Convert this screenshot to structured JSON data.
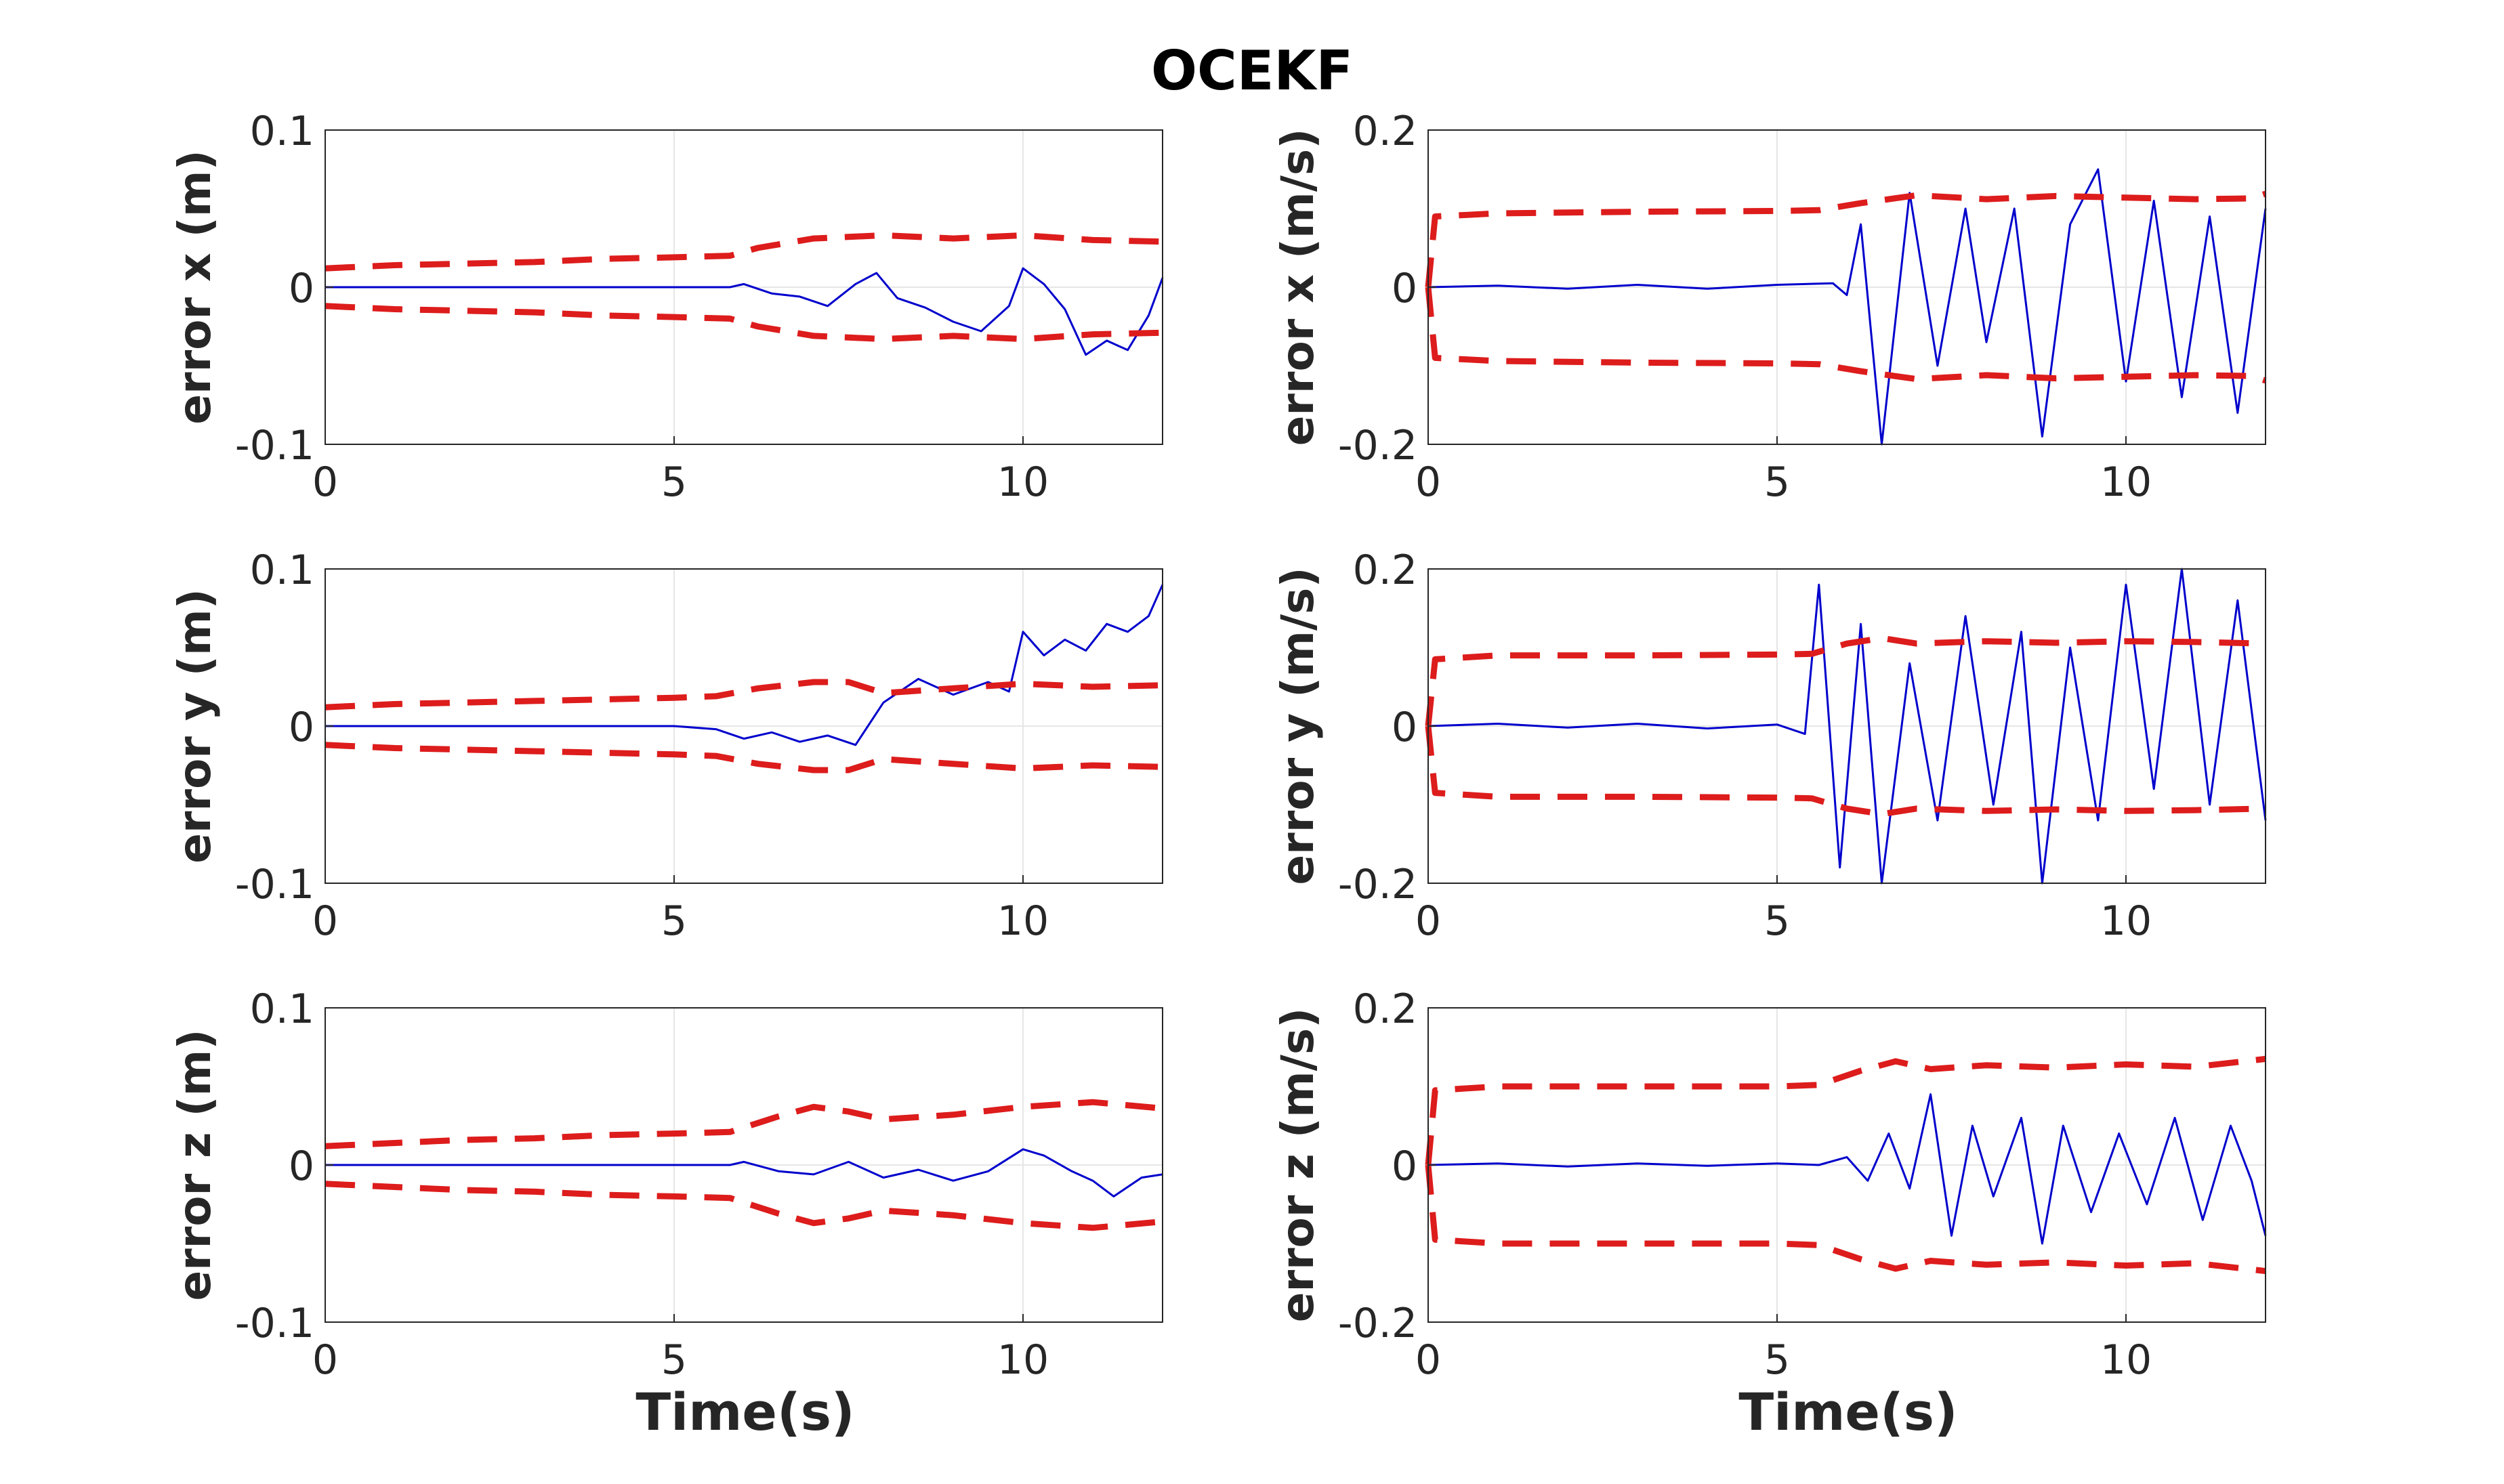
{
  "title": "OCEKF",
  "colors": {
    "error": "#0000cc",
    "bound": "#dd1c1c",
    "grid": "#e6e6e6",
    "axis": "#262626"
  },
  "x_axis_label": "Time(s)",
  "chart_data": [
    {
      "type": "line",
      "ylabel": "error x (m)",
      "xlim": [
        0,
        12
      ],
      "ylim": [
        -0.1,
        0.1
      ],
      "xticks": [
        "0",
        "5",
        "10"
      ],
      "yticks": [
        "-0.1",
        "0",
        "0.1"
      ],
      "grid": true,
      "series": [
        {
          "name": "error",
          "x": [
            0,
            1,
            2,
            3,
            4,
            5,
            5.8,
            6.0,
            6.4,
            6.8,
            7.2,
            7.6,
            7.9,
            8.2,
            8.6,
            9.0,
            9.4,
            9.8,
            10.0,
            10.3,
            10.6,
            10.9,
            11.2,
            11.5,
            11.8,
            12.0
          ],
          "y": [
            0,
            0,
            0,
            0,
            0,
            0,
            0,
            0.002,
            -0.004,
            -0.006,
            -0.012,
            0.002,
            0.009,
            -0.007,
            -0.013,
            -0.022,
            -0.028,
            -0.012,
            0.012,
            0.002,
            -0.014,
            -0.043,
            -0.034,
            -0.04,
            -0.018,
            0.006
          ]
        },
        {
          "name": "+3σ bound",
          "x": [
            0,
            1,
            2,
            3,
            4,
            5,
            5.8,
            6.2,
            7,
            8,
            9,
            10,
            11,
            12
          ],
          "y": [
            0.012,
            0.014,
            0.015,
            0.016,
            0.018,
            0.019,
            0.02,
            0.025,
            0.031,
            0.033,
            0.031,
            0.033,
            0.03,
            0.029
          ]
        },
        {
          "name": "-3σ bound",
          "x": [
            0,
            1,
            2,
            3,
            4,
            5,
            5.8,
            6.2,
            7,
            8,
            9,
            10,
            11,
            12
          ],
          "y": [
            -0.012,
            -0.014,
            -0.015,
            -0.016,
            -0.018,
            -0.019,
            -0.02,
            -0.025,
            -0.031,
            -0.033,
            -0.031,
            -0.033,
            -0.03,
            -0.029
          ]
        }
      ]
    },
    {
      "type": "line",
      "ylabel": "error x (m/s)",
      "xlim": [
        0,
        12
      ],
      "ylim": [
        -0.2,
        0.2
      ],
      "xticks": [
        "0",
        "5",
        "10"
      ],
      "yticks": [
        "-0.2",
        "0",
        "0.2"
      ],
      "grid": true,
      "series": [
        {
          "name": "error",
          "x": [
            0,
            1,
            2,
            3,
            4,
            5,
            5.8,
            6.0,
            6.2,
            6.5,
            6.9,
            7.3,
            7.7,
            8.0,
            8.4,
            8.8,
            9.2,
            9.6,
            10.0,
            10.4,
            10.8,
            11.2,
            11.6,
            12.0
          ],
          "y": [
            0,
            0.002,
            -0.002,
            0.003,
            -0.002,
            0.003,
            0.005,
            -0.01,
            0.08,
            -0.2,
            0.12,
            -0.1,
            0.1,
            -0.07,
            0.1,
            -0.19,
            0.08,
            0.15,
            -0.12,
            0.11,
            -0.14,
            0.09,
            -0.16,
            0.1
          ]
        },
        {
          "name": "+3σ bound",
          "x": [
            0,
            0.1,
            1,
            3,
            5,
            5.6,
            6.2,
            7,
            8,
            9,
            10,
            11,
            11.8,
            12
          ],
          "y": [
            0.0,
            0.09,
            0.094,
            0.096,
            0.097,
            0.098,
            0.107,
            0.117,
            0.112,
            0.116,
            0.114,
            0.112,
            0.113,
            0.119
          ]
        },
        {
          "name": "-3σ bound",
          "x": [
            0,
            0.1,
            1,
            3,
            5,
            5.6,
            6.2,
            7,
            8,
            9,
            10,
            11,
            11.8,
            12
          ],
          "y": [
            0.0,
            -0.09,
            -0.094,
            -0.096,
            -0.097,
            -0.098,
            -0.107,
            -0.117,
            -0.112,
            -0.116,
            -0.114,
            -0.112,
            -0.113,
            -0.119
          ]
        }
      ]
    },
    {
      "type": "line",
      "ylabel": "error y (m)",
      "xlim": [
        0,
        12
      ],
      "ylim": [
        -0.1,
        0.1
      ],
      "xticks": [
        "0",
        "5",
        "10"
      ],
      "yticks": [
        "-0.1",
        "0",
        "0.1"
      ],
      "grid": true,
      "series": [
        {
          "name": "error",
          "x": [
            0,
            1,
            2,
            3,
            4,
            5,
            5.6,
            6.0,
            6.4,
            6.8,
            7.2,
            7.6,
            8.0,
            8.5,
            9.0,
            9.5,
            9.8,
            10.0,
            10.3,
            10.6,
            10.9,
            11.2,
            11.5,
            11.8,
            12.0
          ],
          "y": [
            0,
            0,
            0,
            0,
            0,
            0,
            -0.002,
            -0.008,
            -0.004,
            -0.01,
            -0.006,
            -0.012,
            0.015,
            0.03,
            0.02,
            0.028,
            0.022,
            0.06,
            0.045,
            0.055,
            0.048,
            0.065,
            0.06,
            0.07,
            0.09
          ]
        },
        {
          "name": "+3σ bound",
          "x": [
            0,
            1,
            2,
            3,
            4,
            5,
            5.6,
            6.2,
            7,
            7.5,
            8,
            9,
            10,
            11,
            12
          ],
          "y": [
            0.012,
            0.014,
            0.015,
            0.016,
            0.017,
            0.018,
            0.019,
            0.024,
            0.028,
            0.028,
            0.021,
            0.024,
            0.027,
            0.025,
            0.026
          ]
        },
        {
          "name": "-3σ bound",
          "x": [
            0,
            1,
            2,
            3,
            4,
            5,
            5.6,
            6.2,
            7,
            7.5,
            8,
            9,
            10,
            11,
            12
          ],
          "y": [
            -0.012,
            -0.014,
            -0.015,
            -0.016,
            -0.017,
            -0.018,
            -0.019,
            -0.024,
            -0.028,
            -0.028,
            -0.021,
            -0.024,
            -0.027,
            -0.025,
            -0.026
          ]
        }
      ]
    },
    {
      "type": "line",
      "ylabel": "error y (m/s)",
      "xlim": [
        0,
        12
      ],
      "ylim": [
        -0.2,
        0.2
      ],
      "xticks": [
        "0",
        "5",
        "10"
      ],
      "yticks": [
        "-0.2",
        "0",
        "0.2"
      ],
      "grid": true,
      "series": [
        {
          "name": "error",
          "x": [
            0,
            1,
            2,
            3,
            4,
            5,
            5.4,
            5.6,
            5.9,
            6.2,
            6.5,
            6.9,
            7.3,
            7.7,
            8.1,
            8.5,
            8.8,
            9.2,
            9.6,
            10.0,
            10.4,
            10.8,
            11.2,
            11.6,
            12.0
          ],
          "y": [
            0,
            0.003,
            -0.002,
            0.003,
            -0.003,
            0.002,
            -0.01,
            0.18,
            -0.18,
            0.13,
            -0.2,
            0.08,
            -0.12,
            0.14,
            -0.1,
            0.12,
            -0.2,
            0.1,
            -0.12,
            0.18,
            -0.08,
            0.2,
            -0.1,
            0.16,
            -0.12
          ]
        },
        {
          "name": "+3σ bound",
          "x": [
            0,
            0.1,
            1,
            3,
            5,
            5.5,
            6,
            6.5,
            7,
            8,
            9,
            10,
            11,
            12
          ],
          "y": [
            0.0,
            0.085,
            0.09,
            0.09,
            0.091,
            0.092,
            0.105,
            0.112,
            0.105,
            0.108,
            0.106,
            0.108,
            0.107,
            0.105
          ]
        },
        {
          "name": "-3σ bound",
          "x": [
            0,
            0.1,
            1,
            3,
            5,
            5.5,
            6,
            6.5,
            7,
            8,
            9,
            10,
            11,
            12
          ],
          "y": [
            0.0,
            -0.085,
            -0.09,
            -0.09,
            -0.091,
            -0.092,
            -0.105,
            -0.112,
            -0.105,
            -0.108,
            -0.106,
            -0.108,
            -0.107,
            -0.105
          ]
        }
      ]
    },
    {
      "type": "line",
      "ylabel": "error z (m)",
      "xlim": [
        0,
        12
      ],
      "ylim": [
        -0.1,
        0.1
      ],
      "xticks": [
        "0",
        "5",
        "10"
      ],
      "yticks": [
        "-0.1",
        "0",
        "0.1"
      ],
      "grid": true,
      "series": [
        {
          "name": "error",
          "x": [
            0,
            1,
            2,
            3,
            4,
            5,
            5.8,
            6.0,
            6.5,
            7.0,
            7.5,
            8.0,
            8.5,
            9.0,
            9.5,
            10.0,
            10.3,
            10.7,
            11.0,
            11.3,
            11.7,
            12.0
          ],
          "y": [
            0,
            0,
            0,
            0,
            0,
            0,
            0,
            0.002,
            -0.004,
            -0.006,
            0.002,
            -0.008,
            -0.003,
            -0.01,
            -0.004,
            0.01,
            0.006,
            -0.004,
            -0.01,
            -0.02,
            -0.008,
            -0.006
          ]
        },
        {
          "name": "+3σ bound",
          "x": [
            0,
            1,
            2,
            3,
            4,
            5,
            5.8,
            6.5,
            7,
            7.5,
            8,
            9,
            10,
            11,
            12
          ],
          "y": [
            0.012,
            0.014,
            0.016,
            0.017,
            0.019,
            0.02,
            0.021,
            0.031,
            0.037,
            0.034,
            0.029,
            0.032,
            0.037,
            0.04,
            0.036
          ]
        },
        {
          "name": "-3σ bound",
          "x": [
            0,
            1,
            2,
            3,
            4,
            5,
            5.8,
            6.5,
            7,
            7.5,
            8,
            9,
            10,
            11,
            12
          ],
          "y": [
            -0.012,
            -0.014,
            -0.016,
            -0.017,
            -0.019,
            -0.02,
            -0.021,
            -0.031,
            -0.037,
            -0.034,
            -0.029,
            -0.032,
            -0.037,
            -0.04,
            -0.036
          ]
        }
      ]
    },
    {
      "type": "line",
      "ylabel": "error z (m/s)",
      "xlim": [
        0,
        12
      ],
      "ylim": [
        -0.2,
        0.2
      ],
      "xticks": [
        "0",
        "5",
        "10"
      ],
      "yticks": [
        "-0.2",
        "0",
        "0.2"
      ],
      "grid": true,
      "series": [
        {
          "name": "error",
          "x": [
            0,
            1,
            2,
            3,
            4,
            5,
            5.6,
            6.0,
            6.3,
            6.6,
            6.9,
            7.2,
            7.5,
            7.8,
            8.1,
            8.5,
            8.8,
            9.1,
            9.5,
            9.9,
            10.3,
            10.7,
            11.1,
            11.5,
            11.8,
            12.0
          ],
          "y": [
            0,
            0.002,
            -0.002,
            0.002,
            -0.001,
            0.002,
            0.0,
            0.01,
            -0.02,
            0.04,
            -0.03,
            0.09,
            -0.09,
            0.05,
            -0.04,
            0.06,
            -0.1,
            0.05,
            -0.06,
            0.04,
            -0.05,
            0.06,
            -0.07,
            0.05,
            -0.02,
            -0.09
          ]
        },
        {
          "name": "+3σ bound",
          "x": [
            0,
            0.1,
            1,
            3,
            5,
            5.6,
            6.2,
            6.7,
            7.2,
            8,
            9,
            10,
            11,
            12
          ],
          "y": [
            0.0,
            0.095,
            0.1,
            0.1,
            0.1,
            0.102,
            0.12,
            0.132,
            0.122,
            0.127,
            0.124,
            0.128,
            0.125,
            0.135
          ]
        },
        {
          "name": "-3σ bound",
          "x": [
            0,
            0.1,
            1,
            3,
            5,
            5.6,
            6.2,
            6.7,
            7.2,
            8,
            9,
            10,
            11,
            12
          ],
          "y": [
            0.0,
            -0.095,
            -0.1,
            -0.1,
            -0.1,
            -0.102,
            -0.12,
            -0.132,
            -0.122,
            -0.127,
            -0.124,
            -0.128,
            -0.125,
            -0.135
          ]
        }
      ]
    }
  ]
}
